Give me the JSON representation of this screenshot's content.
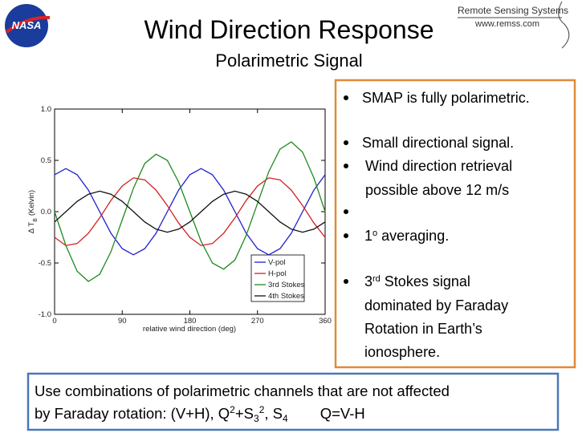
{
  "header": {
    "title": "Wind Direction Response",
    "subtitle": "Polarimetric Signal",
    "logo_left": "NASA",
    "logo_right": [
      "Remote Sensing Systems",
      "www.remss.com"
    ]
  },
  "chart_data": {
    "type": "line",
    "x_label": "relative wind direction (deg)",
    "y_label": [
      "Δ T",
      "B",
      "(Kelvin)"
    ],
    "x": [
      0,
      15,
      30,
      45,
      60,
      75,
      90,
      105,
      120,
      135,
      150,
      165,
      180,
      195,
      210,
      225,
      240,
      255,
      270,
      285,
      300,
      315,
      330,
      345,
      360
    ],
    "series": [
      {
        "name": "V-pol",
        "color": "#1f1fd0",
        "values": [
          0.36,
          0.42,
          0.36,
          0.21,
          0,
          -0.21,
          -0.36,
          -0.42,
          -0.36,
          -0.21,
          0,
          0.21,
          0.36,
          0.42,
          0.36,
          0.21,
          0,
          -0.21,
          -0.36,
          -0.42,
          -0.36,
          -0.21,
          0,
          0.21,
          0.36
        ]
      },
      {
        "name": "H-pol",
        "color": "#d42020",
        "values": [
          -0.25,
          -0.33,
          -0.31,
          -0.21,
          -0.06,
          0.11,
          0.25,
          0.33,
          0.31,
          0.21,
          0.06,
          -0.11,
          -0.25,
          -0.33,
          -0.31,
          -0.21,
          -0.06,
          0.11,
          0.25,
          0.33,
          0.31,
          0.21,
          0.06,
          -0.11,
          -0.25
        ]
      },
      {
        "name": "3rd Stokes",
        "color": "#1f8a1f",
        "values": [
          0,
          -0.33,
          -0.58,
          -0.68,
          -0.61,
          -0.39,
          -0.08,
          0.23,
          0.47,
          0.56,
          0.5,
          0.29,
          0,
          -0.29,
          -0.5,
          -0.56,
          -0.47,
          -0.23,
          0.08,
          0.39,
          0.61,
          0.68,
          0.58,
          0.33,
          0
        ]
      },
      {
        "name": "4th Stokes",
        "color": "#111111",
        "values": [
          -0.1,
          0,
          0.1,
          0.17,
          0.2,
          0.17,
          0.1,
          0,
          -0.1,
          -0.17,
          -0.2,
          -0.17,
          -0.1,
          0,
          0.1,
          0.17,
          0.2,
          0.17,
          0.1,
          0,
          -0.1,
          -0.17,
          -0.2,
          -0.17,
          -0.1
        ]
      }
    ],
    "xlim": [
      0,
      360
    ],
    "xticks": [
      0,
      90,
      180,
      270,
      360
    ],
    "ylim": [
      -1,
      1
    ],
    "yticks": [
      {
        "value": -1,
        "label": "-1.0"
      },
      {
        "value": -0.5,
        "label": "-0.5"
      },
      {
        "value": 0,
        "label": "0.0"
      },
      {
        "value": 0.5,
        "label": "0.5"
      },
      {
        "value": 1,
        "label": "1.0"
      }
    ],
    "grid": false,
    "legend": "lower right"
  },
  "bullets": [
    [
      "SMAP is fully polarimetric."
    ],
    [
      "Small directional signal."
    ],
    [
      "Wind direction retrieval",
      "possible above 12 m/s"
    ],
    [
      "1",
      "o",
      " averaging."
    ],
    [
      "3",
      "rd",
      " Stokes signal",
      "dominated by Faraday",
      "Rotation in Earth’s",
      "ionosphere."
    ]
  ],
  "footer": {
    "line1": "Use combinations of polarimetric channels that are not affected",
    "line2": [
      "by Faraday rotation: (V+H), Q",
      "2",
      "+S",
      "3",
      "2",
      ", S",
      "4",
      "Q=V-H"
    ]
  }
}
